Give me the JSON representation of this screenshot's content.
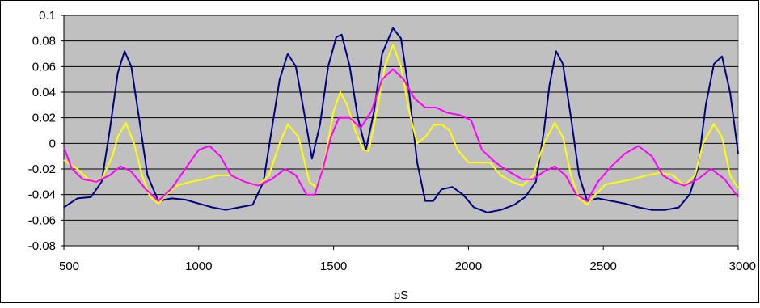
{
  "chart_data": {
    "type": "line",
    "xlabel": "pS",
    "ylabel": "",
    "title": "",
    "xlim": [
      500,
      3000
    ],
    "ylim": [
      -0.08,
      0.1
    ],
    "x_ticks": [
      500,
      1000,
      1500,
      2000,
      2500,
      3000
    ],
    "y_ticks": [
      -0.08,
      -0.06,
      -0.04,
      -0.02,
      0,
      0.02,
      0.04,
      0.06,
      0.08,
      0.1
    ],
    "x_tick_labels": [
      "500",
      "1000",
      "1500",
      "2000",
      "2500",
      "3000"
    ],
    "y_tick_labels": [
      "-0.08",
      "-0.06",
      "-0.04",
      "-0.02",
      "0",
      "0.02",
      "0.04",
      "0.06",
      "0.08",
      "0.1"
    ],
    "grid": "horizontal",
    "plot_background": "#c0c0c0",
    "series": [
      {
        "color": "#000080",
        "x": [
          500,
          550,
          600,
          640,
          670,
          700,
          725,
          750,
          780,
          810,
          850,
          900,
          950,
          1000,
          1050,
          1100,
          1150,
          1200,
          1240,
          1270,
          1300,
          1330,
          1360,
          1390,
          1420,
          1450,
          1480,
          1510,
          1530,
          1560,
          1590,
          1620,
          1650,
          1680,
          1720,
          1750,
          1780,
          1810,
          1840,
          1870,
          1900,
          1940,
          1980,
          2020,
          2070,
          2120,
          2170,
          2210,
          2250,
          2280,
          2300,
          2325,
          2350,
          2380,
          2410,
          2440,
          2480,
          2530,
          2580,
          2630,
          2680,
          2730,
          2780,
          2820,
          2850,
          2880,
          2910,
          2940,
          2970,
          3000
        ],
        "y": [
          -0.05,
          -0.043,
          -0.042,
          -0.03,
          0.01,
          0.055,
          0.072,
          0.06,
          0.018,
          -0.025,
          -0.045,
          -0.043,
          -0.044,
          -0.047,
          -0.05,
          -0.052,
          -0.05,
          -0.048,
          -0.03,
          0.01,
          0.05,
          0.07,
          0.06,
          0.025,
          -0.012,
          0.015,
          0.06,
          0.083,
          0.085,
          0.06,
          0.02,
          -0.005,
          0.025,
          0.07,
          0.09,
          0.082,
          0.04,
          -0.015,
          -0.045,
          -0.045,
          -0.036,
          -0.034,
          -0.04,
          -0.05,
          -0.054,
          -0.052,
          -0.048,
          -0.042,
          -0.03,
          0.01,
          0.045,
          0.072,
          0.062,
          0.02,
          -0.025,
          -0.045,
          -0.043,
          -0.045,
          -0.047,
          -0.05,
          -0.052,
          -0.052,
          -0.05,
          -0.04,
          -0.02,
          0.03,
          0.062,
          0.068,
          0.04,
          -0.008
        ]
      },
      {
        "color": "#ffff00",
        "x": [
          500,
          550,
          600,
          640,
          680,
          700,
          730,
          760,
          790,
          820,
          850,
          880,
          920,
          970,
          1020,
          1070,
          1120,
          1170,
          1220,
          1260,
          1300,
          1330,
          1370,
          1410,
          1440,
          1470,
          1500,
          1525,
          1550,
          1580,
          1610,
          1630,
          1660,
          1690,
          1720,
          1750,
          1780,
          1810,
          1840,
          1870,
          1900,
          1930,
          1960,
          2000,
          2040,
          2080,
          2120,
          2160,
          2200,
          2240,
          2280,
          2320,
          2350,
          2380,
          2410,
          2440,
          2470,
          2510,
          2560,
          2610,
          2660,
          2710,
          2760,
          2800,
          2840,
          2870,
          2910,
          2940,
          2970,
          3000
        ],
        "y": [
          -0.013,
          -0.02,
          -0.03,
          -0.028,
          -0.01,
          0.005,
          0.016,
          0.0,
          -0.025,
          -0.042,
          -0.047,
          -0.04,
          -0.033,
          -0.03,
          -0.028,
          -0.025,
          -0.025,
          -0.03,
          -0.033,
          -0.025,
          0.0,
          0.015,
          0.005,
          -0.03,
          -0.035,
          -0.01,
          0.025,
          0.04,
          0.03,
          0.01,
          -0.005,
          -0.006,
          0.025,
          0.06,
          0.077,
          0.06,
          0.025,
          0.0,
          0.005,
          0.014,
          0.015,
          0.01,
          -0.005,
          -0.015,
          -0.015,
          -0.015,
          -0.025,
          -0.03,
          -0.033,
          -0.025,
          0.0,
          0.016,
          0.005,
          -0.025,
          -0.043,
          -0.048,
          -0.04,
          -0.032,
          -0.03,
          -0.028,
          -0.025,
          -0.023,
          -0.025,
          -0.033,
          -0.025,
          0.0,
          0.015,
          0.005,
          -0.025,
          -0.035
        ]
      },
      {
        "color": "#ff00ff",
        "x": [
          500,
          530,
          570,
          620,
          670,
          710,
          750,
          800,
          850,
          900,
          950,
          1000,
          1040,
          1080,
          1120,
          1170,
          1220,
          1270,
          1320,
          1360,
          1400,
          1430,
          1460,
          1490,
          1520,
          1560,
          1600,
          1640,
          1680,
          1720,
          1760,
          1800,
          1840,
          1880,
          1920,
          1970,
          2010,
          2050,
          2100,
          2150,
          2200,
          2240,
          2280,
          2320,
          2360,
          2400,
          2440,
          2480,
          2530,
          2580,
          2630,
          2680,
          2720,
          2760,
          2800,
          2850,
          2900,
          2950,
          3000
        ],
        "y": [
          -0.003,
          -0.02,
          -0.028,
          -0.03,
          -0.025,
          -0.018,
          -0.022,
          -0.035,
          -0.045,
          -0.035,
          -0.02,
          -0.005,
          -0.002,
          -0.01,
          -0.025,
          -0.03,
          -0.033,
          -0.028,
          -0.02,
          -0.025,
          -0.04,
          -0.04,
          -0.02,
          0.005,
          0.02,
          0.02,
          0.012,
          0.025,
          0.05,
          0.058,
          0.05,
          0.035,
          0.028,
          0.028,
          0.024,
          0.022,
          0.018,
          -0.005,
          -0.015,
          -0.022,
          -0.028,
          -0.028,
          -0.022,
          -0.018,
          -0.025,
          -0.04,
          -0.045,
          -0.03,
          -0.018,
          -0.008,
          -0.002,
          -0.01,
          -0.025,
          -0.03,
          -0.033,
          -0.028,
          -0.02,
          -0.028,
          -0.042
        ]
      }
    ]
  }
}
